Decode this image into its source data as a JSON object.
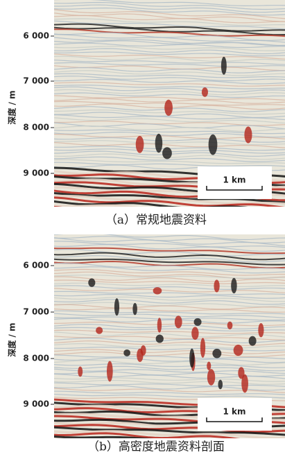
{
  "panels": [
    {
      "axis_label": "深度 / m",
      "ticks": [
        "6 000",
        "7 000",
        "8 000",
        "9 000"
      ],
      "scale_bar": "1 km",
      "caption": "（a）常规地震资料"
    },
    {
      "axis_label": "深度 / m",
      "ticks": [
        "6 000",
        "7 000",
        "8 000",
        "9 000"
      ],
      "scale_bar": "1 km",
      "caption": "（b）高密度地震资料剖面"
    }
  ]
}
